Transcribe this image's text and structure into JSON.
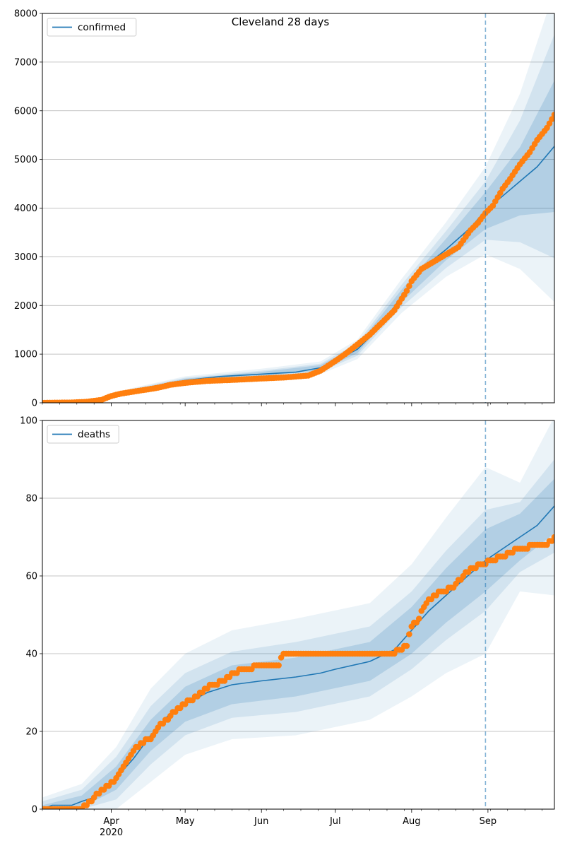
{
  "title": "Cleveland 28 days",
  "chart_data": [
    {
      "type": "line",
      "title": "Cleveland 28 days",
      "legend": "top-left",
      "grid": "y",
      "xlim": [
        "2020-03-04",
        "2020-09-28"
      ],
      "ylim": [
        0,
        8000
      ],
      "yticks": [
        0,
        1000,
        2000,
        3000,
        4000,
        5000,
        6000,
        7000,
        8000
      ],
      "forecast_start": "2020-08-31",
      "series": [
        {
          "name": "confirmed",
          "kind": "model",
          "color": "#1f77b4",
          "x": [
            "2020-03-04",
            "2020-03-20",
            "2020-03-27",
            "2020-04-03",
            "2020-04-10",
            "2020-04-17",
            "2020-04-24",
            "2020-05-01",
            "2020-05-15",
            "2020-06-01",
            "2020-06-15",
            "2020-06-25",
            "2020-07-01",
            "2020-07-10",
            "2020-07-20",
            "2020-07-28",
            "2020-08-05",
            "2020-08-15",
            "2020-08-25",
            "2020-08-31",
            "2020-09-07",
            "2020-09-14",
            "2020-09-21",
            "2020-09-28"
          ],
          "y": [
            0,
            10,
            50,
            170,
            250,
            320,
            390,
            460,
            540,
            590,
            630,
            720,
            860,
            1100,
            1600,
            2200,
            2750,
            3150,
            3600,
            3950,
            4250,
            4550,
            4850,
            5270
          ]
        },
        {
          "name": "",
          "kind": "observed",
          "color": "#ff7f0e",
          "x": [
            "2020-03-04",
            "2020-03-15",
            "2020-03-22",
            "2020-03-28",
            "2020-04-01",
            "2020-04-05",
            "2020-04-10",
            "2020-04-15",
            "2020-04-20",
            "2020-04-25",
            "2020-05-01",
            "2020-05-10",
            "2020-05-20",
            "2020-06-01",
            "2020-06-10",
            "2020-06-20",
            "2020-06-25",
            "2020-07-01",
            "2020-07-05",
            "2020-07-10",
            "2020-07-15",
            "2020-07-20",
            "2020-07-25",
            "2020-07-30",
            "2020-08-01",
            "2020-08-05",
            "2020-08-10",
            "2020-08-15",
            "2020-08-20",
            "2020-08-25",
            "2020-08-28",
            "2020-08-31",
            "2020-09-03",
            "2020-09-07",
            "2020-09-10",
            "2020-09-14",
            "2020-09-18",
            "2020-09-21",
            "2020-09-25",
            "2020-09-28"
          ],
          "y": [
            0,
            5,
            20,
            60,
            140,
            190,
            230,
            270,
            310,
            370,
            410,
            450,
            470,
            500,
            520,
            560,
            660,
            860,
            1000,
            1200,
            1400,
            1650,
            1900,
            2300,
            2500,
            2750,
            2900,
            3050,
            3200,
            3550,
            3700,
            3900,
            4050,
            4400,
            4600,
            4900,
            5150,
            5400,
            5650,
            5920
          ]
        }
      ],
      "bands": {
        "x": [
          "2020-03-04",
          "2020-03-27",
          "2020-04-10",
          "2020-05-01",
          "2020-06-01",
          "2020-06-25",
          "2020-07-10",
          "2020-07-28",
          "2020-08-15",
          "2020-08-31",
          "2020-09-14",
          "2020-09-28"
        ],
        "center": [
          0,
          50,
          250,
          460,
          590,
          720,
          1100,
          2200,
          3150,
          3950,
          4550,
          5270
        ],
        "half_widths": [
          [
            0,
            10,
            25,
            35,
            45,
            55,
            80,
            130,
            220,
            380,
            700,
            1350
          ],
          [
            0,
            17,
            40,
            55,
            70,
            85,
            130,
            230,
            380,
            600,
            1250,
            2300
          ],
          [
            0,
            25,
            60,
            85,
            110,
            130,
            200,
            350,
            560,
            900,
            1800,
            3200
          ]
        ]
      }
    },
    {
      "type": "line",
      "title": "",
      "legend": "top-left",
      "grid": "y",
      "xlim": [
        "2020-03-04",
        "2020-09-28"
      ],
      "ylim": [
        0,
        100
      ],
      "yticks": [
        0,
        20,
        40,
        60,
        80,
        100
      ],
      "forecast_start": "2020-08-31",
      "series": [
        {
          "name": "deaths",
          "kind": "model",
          "color": "#1f77b4",
          "x": [
            "2020-03-04",
            "2020-03-08",
            "2020-03-16",
            "2020-03-20",
            "2020-03-25",
            "2020-03-29",
            "2020-04-03",
            "2020-04-10",
            "2020-04-17",
            "2020-04-24",
            "2020-05-01",
            "2020-05-10",
            "2020-05-20",
            "2020-06-01",
            "2020-06-15",
            "2020-06-25",
            "2020-07-01",
            "2020-07-15",
            "2020-07-25",
            "2020-08-01",
            "2020-08-08",
            "2020-08-15",
            "2020-08-22",
            "2020-08-31",
            "2020-09-07",
            "2020-09-14",
            "2020-09-21",
            "2020-09-28"
          ],
          "y": [
            0,
            1,
            1,
            2,
            3,
            5,
            8,
            13,
            19,
            24,
            27,
            30,
            32,
            33,
            34,
            35,
            36,
            38,
            41,
            46,
            51,
            55,
            59,
            64,
            67,
            70,
            73,
            78
          ]
        },
        {
          "name": "",
          "kind": "observed",
          "color": "#ff7f0e",
          "x": [
            "2020-03-04",
            "2020-03-20",
            "2020-03-22",
            "2020-03-25",
            "2020-03-28",
            "2020-03-31",
            "2020-04-03",
            "2020-04-06",
            "2020-04-09",
            "2020-04-13",
            "2020-04-17",
            "2020-04-20",
            "2020-04-24",
            "2020-04-28",
            "2020-05-03",
            "2020-05-08",
            "2020-05-12",
            "2020-05-17",
            "2020-05-20",
            "2020-06-01",
            "2020-06-05",
            "2020-06-08",
            "2020-06-10",
            "2020-06-15",
            "2020-07-01",
            "2020-07-25",
            "2020-07-27",
            "2020-07-30",
            "2020-08-01",
            "2020-08-04",
            "2020-08-06",
            "2020-08-10",
            "2020-08-14",
            "2020-08-18",
            "2020-08-22",
            "2020-08-25",
            "2020-08-30",
            "2020-09-03",
            "2020-09-07",
            "2020-09-10",
            "2020-09-14",
            "2020-09-21",
            "2020-09-25",
            "2020-09-28"
          ],
          "y": [
            0,
            0,
            1,
            3,
            5,
            6,
            8,
            11,
            14,
            17,
            18,
            21,
            23,
            26,
            28,
            30,
            32,
            33,
            35,
            37,
            37,
            37,
            40,
            40,
            40,
            40,
            41,
            42,
            47,
            49,
            52,
            55,
            56,
            57,
            60,
            62,
            63,
            64,
            65,
            66,
            67,
            68,
            68,
            70
          ]
        }
      ],
      "bands": {
        "x": [
          "2020-03-04",
          "2020-03-20",
          "2020-04-03",
          "2020-04-17",
          "2020-05-01",
          "2020-05-20",
          "2020-06-15",
          "2020-07-15",
          "2020-08-01",
          "2020-08-15",
          "2020-08-31",
          "2020-09-14",
          "2020-09-28"
        ],
        "center": [
          0,
          2,
          8,
          19,
          27,
          32,
          34,
          38,
          46,
          55,
          64,
          70,
          78
        ],
        "half_widths": [
          [
            1,
            1.5,
            3,
            4,
            4.5,
            5,
            5,
            5,
            6,
            7,
            8,
            6,
            7
          ],
          [
            2,
            3,
            5.5,
            7.5,
            8,
            8.5,
            9,
            9,
            10,
            11.5,
            13,
            9,
            12
          ],
          [
            3,
            4.5,
            8,
            12,
            13,
            14,
            15,
            15,
            17,
            20,
            24,
            14,
            23
          ]
        ]
      }
    }
  ]
}
